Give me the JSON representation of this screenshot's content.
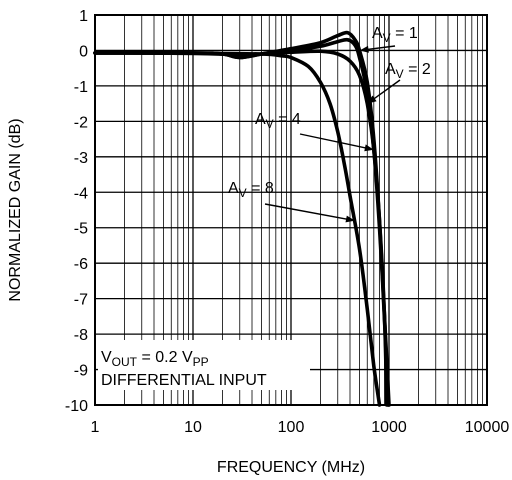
{
  "chart_data": {
    "type": "line",
    "title": "",
    "xlabel": "FREQUENCY (MHz)",
    "ylabel": "NORMALIZED GAIN (dB)",
    "x_scale": "log",
    "xlim": [
      1,
      10000
    ],
    "ylim": [
      -10,
      1
    ],
    "x_ticks": [
      1,
      10,
      100,
      1000,
      10000
    ],
    "x_tick_labels": [
      "1",
      "10",
      "100",
      "1000",
      "10000"
    ],
    "y_ticks": [
      1,
      0,
      -1,
      -2,
      -3,
      -4,
      -5,
      -6,
      -7,
      -8,
      -9,
      -10
    ],
    "y_tick_labels": [
      "1",
      "0",
      "-1",
      "-2",
      "-3",
      "-4",
      "-5",
      "-6",
      "-7",
      "-8",
      "-9",
      "-10"
    ],
    "grid": true,
    "series": [
      {
        "x": [
          1,
          10,
          20,
          30,
          50,
          100,
          200,
          300,
          380,
          450,
          500,
          600,
          700,
          800,
          900,
          1000
        ],
        "y": [
          -0.07,
          -0.07,
          -0.1,
          -0.2,
          -0.1,
          0.05,
          0.22,
          0.42,
          0.5,
          0.3,
          0.0,
          -0.9,
          -2.5,
          -4.8,
          -7.5,
          -10
        ]
      },
      {
        "x": [
          1,
          10,
          20,
          30,
          50,
          100,
          200,
          300,
          380,
          450,
          500,
          600,
          700,
          800,
          900,
          980
        ],
        "y": [
          -0.07,
          -0.07,
          -0.1,
          -0.2,
          -0.1,
          0.0,
          0.12,
          0.25,
          0.3,
          0.15,
          -0.2,
          -1.2,
          -2.8,
          -5.0,
          -7.6,
          -10
        ]
      },
      {
        "x": [
          1,
          10,
          30,
          50,
          100,
          200,
          300,
          400,
          500,
          600,
          700,
          800,
          900,
          950
        ],
        "y": [
          -0.07,
          -0.08,
          -0.12,
          -0.1,
          -0.05,
          -0.02,
          -0.1,
          -0.3,
          -0.7,
          -1.5,
          -2.8,
          -4.8,
          -7.5,
          -10
        ]
      },
      {
        "x": [
          1,
          10,
          50,
          80,
          100,
          150,
          200,
          250,
          300,
          350,
          400,
          500,
          600,
          700,
          800
        ],
        "y": [
          -0.07,
          -0.08,
          -0.1,
          -0.15,
          -0.2,
          -0.45,
          -0.9,
          -1.5,
          -2.3,
          -3.2,
          -4.1,
          -5.6,
          -7.3,
          -8.9,
          -10
        ]
      }
    ],
    "annotations": [
      {
        "main": "A",
        "sub": "V",
        "rest": " = 1",
        "target": [
          500,
          0.0
        ]
      },
      {
        "main": "A",
        "sub": "V",
        "rest": " = 2",
        "target": [
          600,
          -1.5
        ]
      },
      {
        "main": "A",
        "sub": "V",
        "rest": " = 4",
        "target": [
          700,
          -2.8
        ]
      },
      {
        "main": "A",
        "sub": "V",
        "rest": " = 8",
        "target": [
          450,
          -4.8
        ]
      }
    ],
    "legend_box": {
      "line1_main": "V",
      "line1_sub": "OUT",
      "line1_mid": " = 0.2 V",
      "line1_sub2": "PP",
      "line2": "DIFFERENTIAL INPUT"
    }
  }
}
